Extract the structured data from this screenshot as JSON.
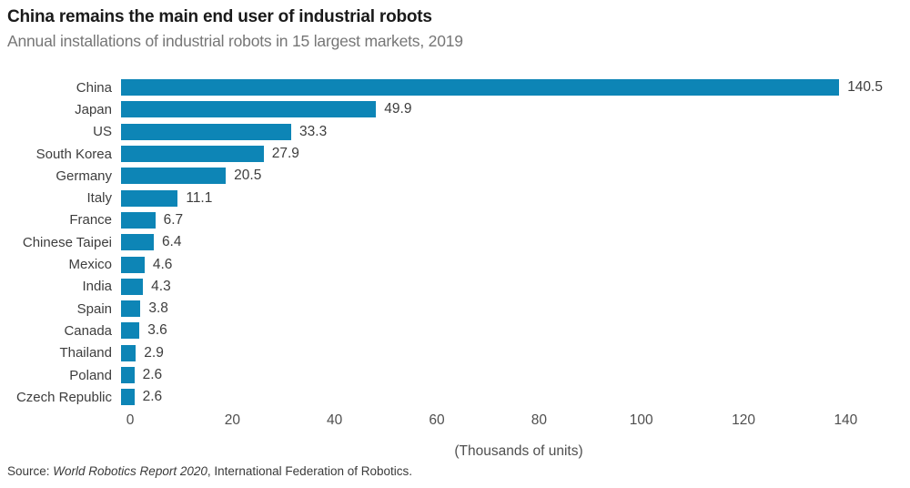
{
  "header": {
    "title": "China remains the main end user of industrial robots",
    "subtitle": "Annual installations of industrial robots in 15 largest markets, 2019"
  },
  "chart_data": {
    "type": "bar",
    "orientation": "horizontal",
    "title": "China remains the main end user of industrial robots",
    "subtitle": "Annual installations of industrial robots in 15 largest markets, 2019",
    "categories": [
      "China",
      "Japan",
      "US",
      "South Korea",
      "Germany",
      "Italy",
      "France",
      "Chinese Taipei",
      "Mexico",
      "India",
      "Spain",
      "Canada",
      "Thailand",
      "Poland",
      "Czech Republic"
    ],
    "values": [
      140.5,
      49.9,
      33.3,
      27.9,
      20.5,
      11.1,
      6.7,
      6.4,
      4.6,
      4.3,
      3.8,
      3.6,
      2.9,
      2.6,
      2.6
    ],
    "value_labels": [
      "140.5",
      "49.9",
      "33.3",
      "27.9",
      "20.5",
      "11.1",
      "6.7",
      "6.4",
      "4.6",
      "4.3",
      "3.8",
      "3.6",
      "2.9",
      "2.6",
      "2.6"
    ],
    "xlabel": "(Thousands of units)",
    "xticks": [
      0,
      20,
      40,
      60,
      80,
      100,
      120,
      140
    ],
    "xlim": [
      0,
      150
    ],
    "grid": false,
    "legend": false,
    "bar_color": "#0d85b6"
  },
  "footer": {
    "source_prefix": "Source: ",
    "source_italic": "World Robotics Report 2020",
    "source_suffix": ", International Federation of Robotics."
  },
  "colors": {
    "bar": "#0d85b6",
    "title": "#1a1a1a",
    "subtitle": "#767676",
    "label": "#3d3d3d",
    "tick": "#4f4f4f",
    "background": "#ffffff"
  }
}
